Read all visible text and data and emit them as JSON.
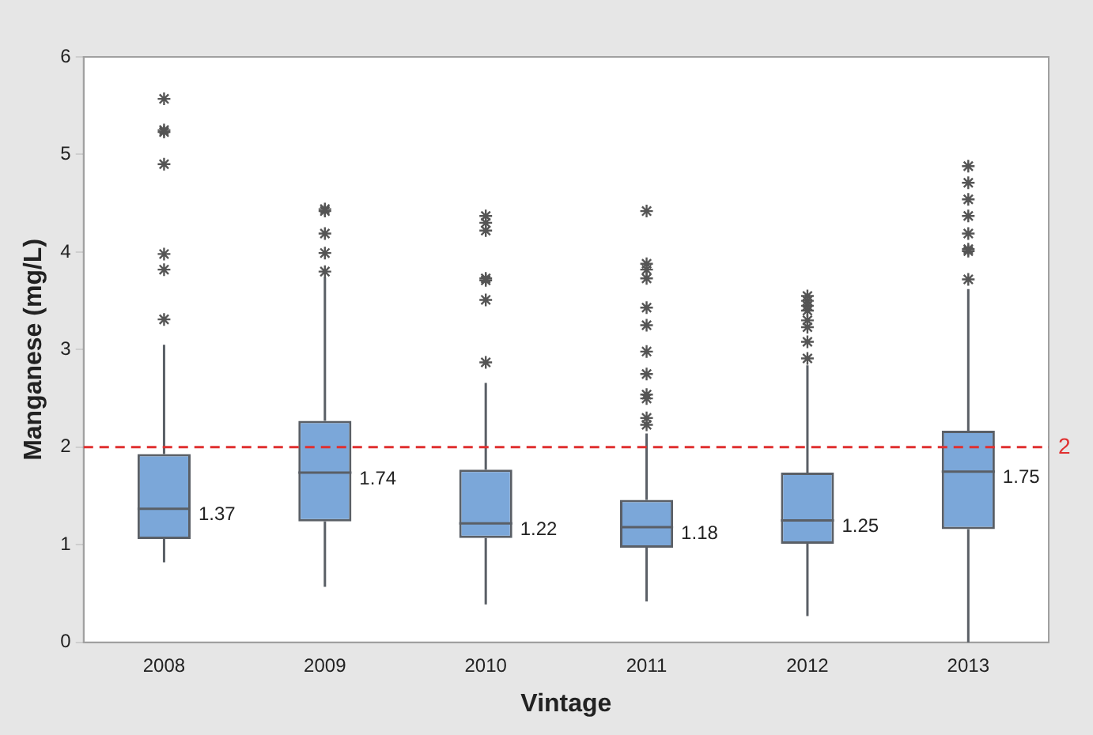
{
  "chart_data": {
    "type": "box",
    "xlabel": "Vintage",
    "ylabel": "Manganese (mg/L)",
    "categories": [
      "2008",
      "2009",
      "2010",
      "2011",
      "2012",
      "2013"
    ],
    "color": "#7ba7d9",
    "boxes": [
      {
        "low": 0.82,
        "q1": 1.06,
        "median": 1.37,
        "q3": 1.93,
        "high": 3.05,
        "outliers": [
          3.31,
          3.82,
          3.98,
          4.9,
          5.23,
          5.25,
          5.57
        ]
      },
      {
        "low": 0.57,
        "q1": 1.24,
        "median": 1.74,
        "q3": 2.27,
        "high": 3.74,
        "outliers": [
          3.8,
          3.99,
          4.19,
          4.42,
          4.44
        ]
      },
      {
        "low": 0.39,
        "q1": 1.07,
        "median": 1.22,
        "q3": 1.77,
        "high": 2.66,
        "outliers": [
          2.87,
          3.51,
          3.71,
          3.73,
          4.22,
          4.3,
          4.37
        ]
      },
      {
        "low": 0.42,
        "q1": 0.97,
        "median": 1.18,
        "q3": 1.46,
        "high": 2.14,
        "outliers": [
          2.23,
          2.3,
          2.5,
          2.54,
          2.75,
          2.98,
          3.25,
          3.43,
          3.73,
          3.82,
          3.88,
          4.42
        ]
      },
      {
        "low": 0.27,
        "q1": 1.01,
        "median": 1.25,
        "q3": 1.74,
        "high": 2.84,
        "outliers": [
          2.91,
          3.08,
          3.23,
          3.3,
          3.4,
          3.45,
          3.5,
          3.55
        ]
      },
      {
        "low": 0,
        "q1": 1.16,
        "median": 1.75,
        "q3": 2.17,
        "high": 3.62,
        "outliers": [
          3.72,
          4.01,
          4.03,
          4.19,
          4.37,
          4.54,
          4.71,
          4.88
        ]
      }
    ],
    "ylim": [
      0,
      6
    ],
    "yticks": [
      0,
      1,
      2,
      3,
      4,
      5,
      6
    ],
    "grid": false,
    "legend": false,
    "marker": "star",
    "value_labels": [
      "1.37",
      "1.74",
      "1.22",
      "1.18",
      "1.25",
      "1.75"
    ],
    "ref_lines": [
      {
        "axis": "y",
        "value": 2,
        "label": "2",
        "color": "#e03030",
        "line_style": "dashed"
      }
    ]
  }
}
